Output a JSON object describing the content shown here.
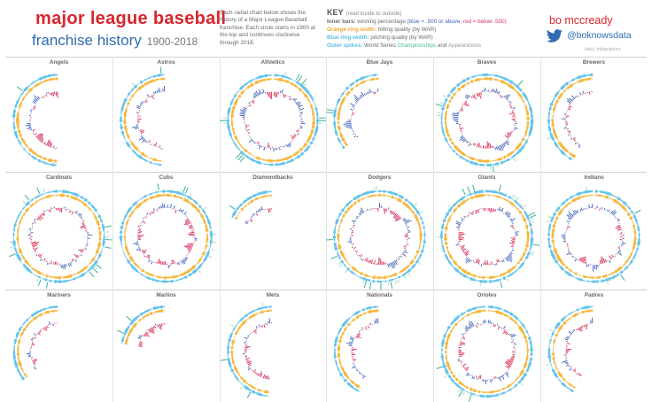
{
  "header": {
    "title_line1": "major league baseball",
    "title_line2": "franchise history",
    "years": "1900-2018",
    "description": "Each radial chart below shows the history of a Major League Baseball franchise. Each circle starts in 1900 at the top and continues clockwise through 2018."
  },
  "key": {
    "title": "KEY",
    "subtitle": "(read inside to outside)",
    "inner_label": "Inner bars:",
    "inner_text": "winning percentage",
    "inner_blue": "(blue = .500 or above,",
    "inner_red": "red = below .500)",
    "orange_label": "Orange ring width:",
    "orange_text": "hitting quality (by WAR)",
    "blue_label": "Blue ring width:",
    "blue_text": "pitching quality (by WAR)",
    "outer_label": "Outer spikes:",
    "outer_text": "World Series",
    "outer_champ": "Championships",
    "outer_and": "and",
    "outer_app": "Appearances"
  },
  "author": {
    "name": "bo mccready",
    "handle": "@boknowsdata",
    "tagline": "data | infographics"
  },
  "colors": {
    "win": "#3c5fb8",
    "loss": "#d8325a",
    "hitting": "#f5b942",
    "pitching": "#63c3ea",
    "championship": "#47b89a",
    "appearance": "#a7dccb",
    "title_red": "#d7262e",
    "title_blue": "#2f6cb3"
  },
  "chart_data": {
    "type": "radial-bar",
    "start_year": 1900,
    "end_year": 2018,
    "direction": "clockwise from top",
    "threshold": 0.5,
    "teams": [
      {
        "name": "Angels",
        "first_season": 1961,
        "championships": [
          2002
        ],
        "appearances": []
      },
      {
        "name": "Astros",
        "first_season": 1962,
        "championships": [
          2017
        ],
        "appearances": [
          2005
        ]
      },
      {
        "name": "Athletics",
        "first_season": 1901,
        "championships": [
          1910,
          1911,
          1913,
          1929,
          1930,
          1972,
          1973,
          1974,
          1989
        ],
        "appearances": [
          1905,
          1914,
          1931,
          1988,
          1990
        ]
      },
      {
        "name": "Blue Jays",
        "first_season": 1977,
        "championships": [
          1992,
          1993
        ],
        "appearances": []
      },
      {
        "name": "Braves",
        "first_season": 1900,
        "championships": [
          1914,
          1957,
          1995
        ],
        "appearances": [
          1948,
          1958,
          1991,
          1992,
          1996,
          1999
        ]
      },
      {
        "name": "Brewers",
        "first_season": 1969,
        "championships": [],
        "appearances": [
          1982
        ]
      },
      {
        "name": "Cardinals",
        "first_season": 1900,
        "championships": [
          1926,
          1931,
          1934,
          1942,
          1944,
          1946,
          1964,
          1967,
          1982,
          2006,
          2011
        ],
        "appearances": [
          1928,
          1930,
          1943,
          1968,
          1985,
          1987,
          2004,
          2013
        ]
      },
      {
        "name": "Cubs",
        "first_season": 1900,
        "championships": [
          1907,
          1908,
          2016
        ],
        "appearances": [
          1906,
          1910,
          1918,
          1929,
          1932,
          1935,
          1938,
          1945
        ]
      },
      {
        "name": "Diamondbacks",
        "first_season": 1998,
        "championships": [
          2001
        ],
        "appearances": []
      },
      {
        "name": "Dodgers",
        "first_season": 1900,
        "championships": [
          1955,
          1959,
          1963,
          1965,
          1981,
          1988
        ],
        "appearances": [
          1916,
          1920,
          1941,
          1947,
          1949,
          1952,
          1953,
          1956,
          1966,
          1974,
          1977,
          1978,
          2017,
          2018
        ]
      },
      {
        "name": "Giants",
        "first_season": 1900,
        "championships": [
          1905,
          1921,
          1922,
          1933,
          1954,
          2010,
          2012,
          2014
        ],
        "appearances": [
          1911,
          1912,
          1913,
          1917,
          1923,
          1924,
          1936,
          1937,
          1951,
          1962,
          1989,
          2002
        ]
      },
      {
        "name": "Indians",
        "first_season": 1901,
        "championships": [
          1920,
          1948
        ],
        "appearances": [
          1954,
          1995,
          1997,
          2016
        ]
      },
      {
        "name": "Mariners",
        "first_season": 1977,
        "championships": [],
        "appearances": []
      },
      {
        "name": "Marlins",
        "first_season": 1993,
        "championships": [
          1997,
          2003
        ],
        "appearances": []
      },
      {
        "name": "Mets",
        "first_season": 1962,
        "championships": [
          1969,
          1986
        ],
        "appearances": [
          1973,
          2000,
          2015
        ]
      },
      {
        "name": "Nationals",
        "first_season": 1969,
        "championships": [],
        "appearances": []
      },
      {
        "name": "Orioles",
        "first_season": 1901,
        "championships": [
          1966,
          1970,
          1983
        ],
        "appearances": [
          1944,
          1969,
          1971,
          1979
        ]
      },
      {
        "name": "Padres",
        "first_season": 1969,
        "championships": [],
        "appearances": [
          1984,
          1998
        ]
      }
    ]
  }
}
